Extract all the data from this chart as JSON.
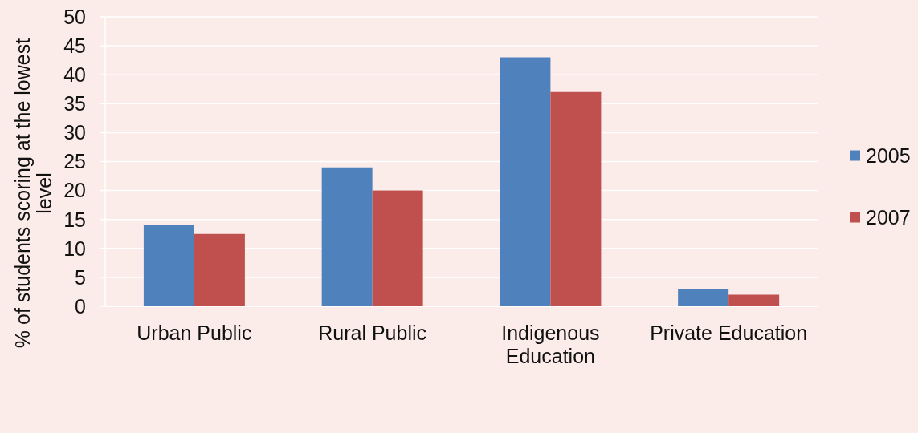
{
  "chart_data": {
    "type": "bar",
    "ylabel": "% of students scoring at the lowest level",
    "categories": [
      "Urban Public",
      "Rural Public",
      "Indigenous Education",
      "Private Education"
    ],
    "series": [
      {
        "name": "2005",
        "color": "#4f81bd",
        "values": [
          14,
          24,
          43,
          3
        ]
      },
      {
        "name": "2007",
        "color": "#c0504d",
        "values": [
          12.5,
          20,
          37,
          2
        ]
      }
    ],
    "ylim": [
      0,
      50
    ],
    "yticks": [
      0,
      5,
      10,
      15,
      20,
      25,
      30,
      35,
      40,
      45,
      50
    ],
    "grid": "y",
    "legend": "right"
  }
}
